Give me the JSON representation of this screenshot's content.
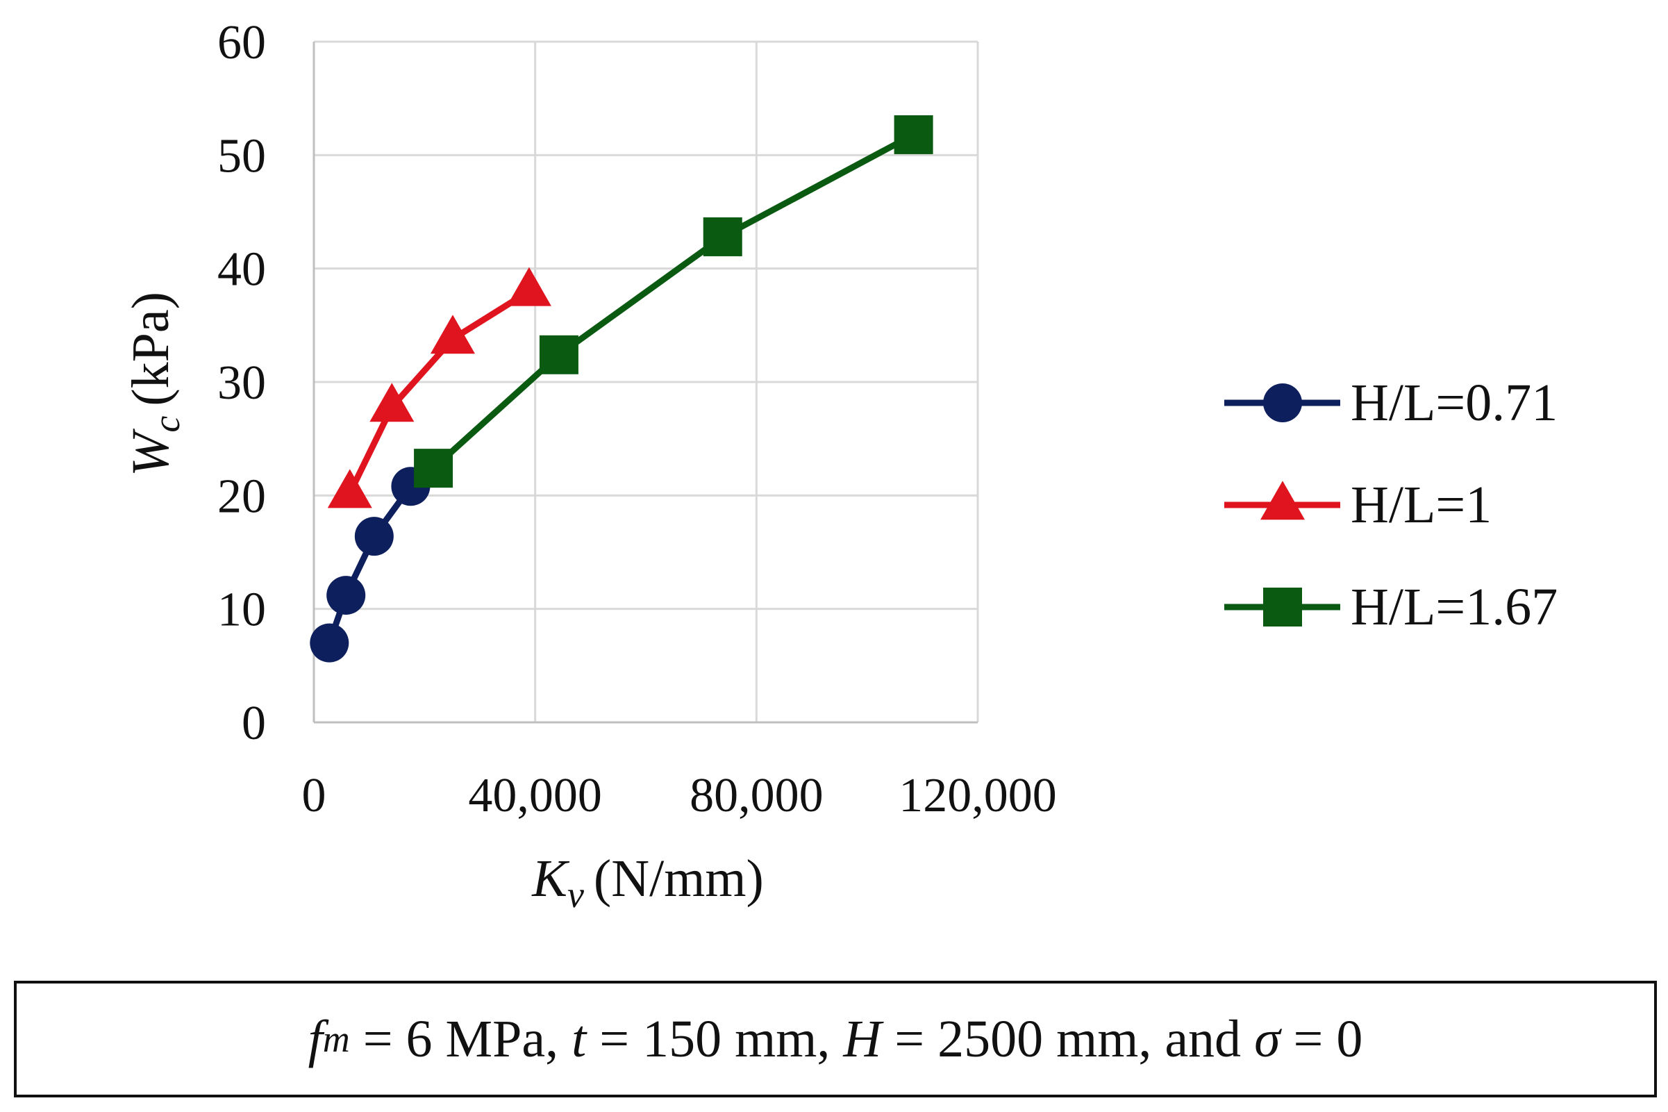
{
  "chart_data": {
    "type": "line",
    "title": "",
    "xlabel": {
      "symbol": "K",
      "subscript": "v",
      "unit": "(N/mm)"
    },
    "ylabel": {
      "symbol": "W",
      "subscript": "c",
      "unit": "(kPa)"
    },
    "xlim": [
      0,
      120000
    ],
    "ylim": [
      0,
      60
    ],
    "xticks": [
      0,
      40000,
      80000,
      120000
    ],
    "xtick_labels": [
      "0",
      "40,000",
      "80,000",
      "120,000"
    ],
    "yticks": [
      0,
      10,
      20,
      30,
      40,
      50,
      60
    ],
    "ytick_labels": [
      "0",
      "10",
      "20",
      "30",
      "40",
      "50",
      "60"
    ],
    "grid": true,
    "legend_position": "right",
    "series": [
      {
        "name": "H/L=0.71",
        "color": "#0d1f5c",
        "marker": "circle",
        "x": [
          2800,
          5800,
          10900,
          17500
        ],
        "y": [
          7.0,
          11.2,
          16.4,
          20.8
        ]
      },
      {
        "name": "H/L=1",
        "color": "#e0141e",
        "marker": "triangle",
        "x": [
          6500,
          14100,
          25100,
          38900
        ],
        "y": [
          20.2,
          27.8,
          33.8,
          38.0
        ]
      },
      {
        "name": "H/L=1.67",
        "color": "#0b5a12",
        "marker": "square",
        "x": [
          21600,
          44300,
          73900,
          108400
        ],
        "y": [
          22.4,
          32.4,
          42.8,
          51.8
        ]
      }
    ]
  },
  "parameters": {
    "fm_symbol": "f",
    "fm_subscript": "m",
    "fm_value": " = 6 MPa, ",
    "t_symbol": "t",
    "t_value": " = 150 mm, ",
    "H_symbol": "H",
    "H_value": " = 2500 mm, and ",
    "sigma_symbol": "σ",
    "sigma_value": " = 0"
  }
}
